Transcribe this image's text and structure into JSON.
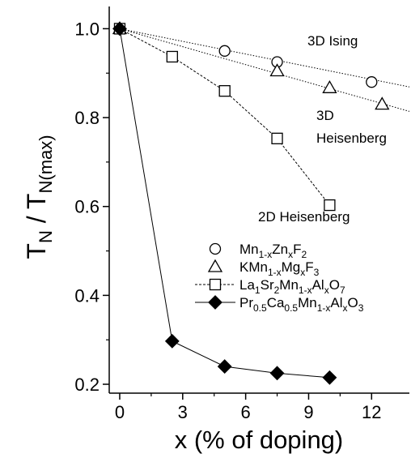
{
  "chart_data": {
    "type": "scatter",
    "xlabel": "x (% of doping)",
    "ylabel": {
      "main": "T",
      "sub1": "N",
      "slash": " / T",
      "sub2": "N(max)"
    },
    "xlim": [
      -0.5,
      13.8
    ],
    "ylim": [
      0.18,
      1.05
    ],
    "xticks": [
      0,
      3,
      6,
      9,
      12
    ],
    "yticks": [
      0.2,
      0.4,
      0.6,
      0.8,
      1.0
    ],
    "ytick_labels": [
      "0.2",
      "0.4",
      "0.6",
      "0.8",
      "1.0"
    ],
    "grid": false,
    "legend_position": "center-right",
    "series": [
      {
        "name": "Mn1-xZnxF2",
        "legend": [
          {
            "t": "Mn"
          },
          {
            "t": "1-x",
            "s": "sub"
          },
          {
            "t": "Zn"
          },
          {
            "t": "x",
            "s": "sub"
          },
          {
            "t": "F"
          },
          {
            "t": "2",
            "s": "sub"
          }
        ],
        "marker": "circle",
        "fill": "#ffffff",
        "line": "none",
        "points": [
          [
            0,
            1.0
          ],
          [
            5,
            0.95
          ],
          [
            7.5,
            0.925
          ],
          [
            12,
            0.88
          ]
        ]
      },
      {
        "name": "KMn1-xMgxF3",
        "legend": [
          {
            "t": "KMn"
          },
          {
            "t": "1-x",
            "s": "sub"
          },
          {
            "t": "Mg"
          },
          {
            "t": "x",
            "s": "sub"
          },
          {
            "t": "F"
          },
          {
            "t": "3",
            "s": "sub"
          }
        ],
        "marker": "triangle",
        "fill": "#ffffff",
        "line": "none",
        "points": [
          [
            0,
            1.0
          ],
          [
            7.5,
            0.905
          ],
          [
            10,
            0.867
          ],
          [
            12.5,
            0.83
          ]
        ]
      },
      {
        "name": "La1Sr2Mn1-xAlxO7",
        "legend": [
          {
            "t": "La"
          },
          {
            "t": "1",
            "s": "sub"
          },
          {
            "t": "Sr"
          },
          {
            "t": "2",
            "s": "sub"
          },
          {
            "t": "Mn"
          },
          {
            "t": "1-x",
            "s": "sub"
          },
          {
            "t": "Al"
          },
          {
            "t": "x",
            "s": "sub"
          },
          {
            "t": "O"
          },
          {
            "t": "7",
            "s": "sub"
          }
        ],
        "marker": "square",
        "fill": "#ffffff",
        "line": "dashed",
        "points": [
          [
            0,
            1.0
          ],
          [
            2.5,
            0.937
          ],
          [
            5,
            0.86
          ],
          [
            7.5,
            0.753
          ],
          [
            10,
            0.603
          ]
        ]
      },
      {
        "name": "Pr0.5Ca0.5Mn1-xAlxO3",
        "legend": [
          {
            "t": "Pr"
          },
          {
            "t": "0.5",
            "s": "sub"
          },
          {
            "t": "Ca"
          },
          {
            "t": "0.5",
            "s": "sub"
          },
          {
            "t": "Mn"
          },
          {
            "t": "1-x",
            "s": "sub"
          },
          {
            "t": "Al"
          },
          {
            "t": "x",
            "s": "sub"
          },
          {
            "t": "O"
          },
          {
            "t": "3",
            "s": "sub"
          }
        ],
        "marker": "diamond",
        "fill": "#000000",
        "line": "solid",
        "points": [
          [
            0,
            1.0
          ],
          [
            2.5,
            0.297
          ],
          [
            5,
            0.24
          ],
          [
            7.5,
            0.225
          ],
          [
            10,
            0.215
          ]
        ]
      }
    ],
    "reference_lines": [
      {
        "label": "3D Ising",
        "from": [
          0,
          1.0
        ],
        "to": [
          13.8,
          0.869
        ]
      },
      {
        "label": "3D Heisenberg",
        "from": [
          0,
          1.0
        ],
        "to": [
          13.8,
          0.814
        ]
      }
    ],
    "annotations": [
      {
        "lines": [
          "3D Ising"
        ]
      },
      {
        "lines": [
          "3D",
          "Heisenberg"
        ]
      },
      {
        "lines": [
          "2D Heisenberg"
        ]
      }
    ]
  }
}
